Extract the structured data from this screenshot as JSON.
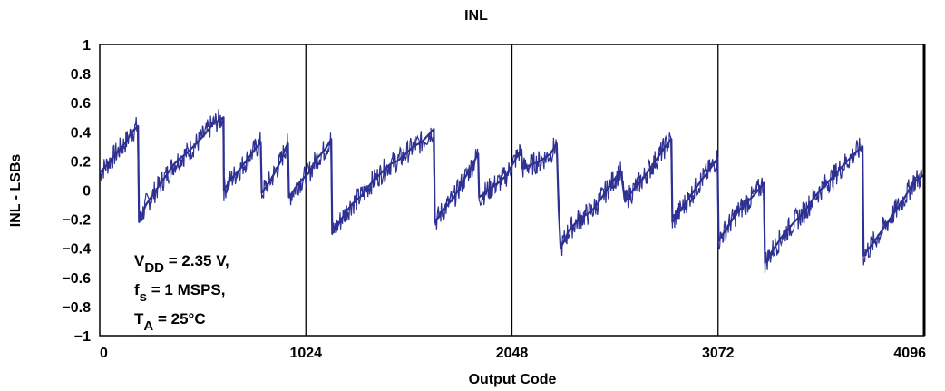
{
  "chart_data": {
    "type": "line",
    "title": "INL",
    "xlabel": "Output Code",
    "ylabel": "INL - LSBs",
    "xlim": [
      0,
      4096
    ],
    "ylim": [
      -1,
      1
    ],
    "x_ticks": [
      "0",
      "1024",
      "2048",
      "3072",
      "4096"
    ],
    "y_ticks": [
      "1",
      "0.8",
      "0.6",
      "0.4",
      "0.2",
      "0",
      "−0.2",
      "−0.4",
      "−0.6",
      "−0.8",
      "−1"
    ],
    "grid": "vertical lines at 1024, 2048, 3072",
    "line_color": "#2e3192",
    "annotations": [
      {
        "main": "V",
        "sub": "DD",
        "rest": " = 2.35 V,"
      },
      {
        "main": "f",
        "sub": "s",
        "rest": " = 1 MSPS,"
      },
      {
        "main": "T",
        "sub": "A",
        "rest": " = 25°C"
      }
    ],
    "series": [
      {
        "values": [
          [
            0,
            0.12
          ],
          [
            40,
            0.18
          ],
          [
            80,
            0.25
          ],
          [
            130,
            0.33
          ],
          [
            160,
            0.4
          ],
          [
            190,
            0.44
          ],
          [
            195,
            -0.22
          ],
          [
            230,
            -0.1
          ],
          [
            280,
            0.0
          ],
          [
            330,
            0.1
          ],
          [
            370,
            0.18
          ],
          [
            400,
            0.22
          ],
          [
            430,
            0.25
          ],
          [
            480,
            0.32
          ],
          [
            520,
            0.38
          ],
          [
            560,
            0.45
          ],
          [
            615,
            0.5
          ],
          [
            617,
            0.0
          ],
          [
            650,
            0.07
          ],
          [
            700,
            0.15
          ],
          [
            760,
            0.26
          ],
          [
            800,
            0.33
          ],
          [
            805,
            -0.02
          ],
          [
            850,
            0.07
          ],
          [
            900,
            0.2
          ],
          [
            920,
            0.28
          ],
          [
            935,
            0.32
          ],
          [
            940,
            -0.05
          ],
          [
            990,
            0.05
          ],
          [
            1040,
            0.12
          ],
          [
            1080,
            0.22
          ],
          [
            1120,
            0.28
          ],
          [
            1150,
            0.35
          ],
          [
            1155,
            -0.3
          ],
          [
            1200,
            -0.2
          ],
          [
            1250,
            -0.1
          ],
          [
            1300,
            -0.04
          ],
          [
            1350,
            0.05
          ],
          [
            1400,
            0.12
          ],
          [
            1445,
            0.18
          ],
          [
            1480,
            0.2
          ],
          [
            1520,
            0.25
          ],
          [
            1560,
            0.3
          ],
          [
            1600,
            0.33
          ],
          [
            1660,
            0.42
          ],
          [
            1665,
            -0.22
          ],
          [
            1700,
            -0.15
          ],
          [
            1760,
            -0.05
          ],
          [
            1800,
            0.05
          ],
          [
            1850,
            0.17
          ],
          [
            1880,
            0.25
          ],
          [
            1885,
            -0.05
          ],
          [
            1930,
            0.0
          ],
          [
            1980,
            0.05
          ],
          [
            2020,
            0.1
          ],
          [
            2060,
            0.2
          ],
          [
            2095,
            0.28
          ],
          [
            2100,
            0.15
          ],
          [
            2190,
            0.2
          ],
          [
            2240,
            0.25
          ],
          [
            2270,
            0.32
          ],
          [
            2280,
            -0.13
          ],
          [
            2290,
            -0.4
          ],
          [
            2330,
            -0.28
          ],
          [
            2380,
            -0.2
          ],
          [
            2440,
            -0.15
          ],
          [
            2470,
            -0.1
          ],
          [
            2520,
            0.0
          ],
          [
            2570,
            0.1
          ],
          [
            2590,
            0.12
          ],
          [
            2610,
            -0.08
          ],
          [
            2650,
            0.0
          ],
          [
            2700,
            0.08
          ],
          [
            2750,
            0.18
          ],
          [
            2800,
            0.28
          ],
          [
            2840,
            0.35
          ],
          [
            2845,
            -0.22
          ],
          [
            2880,
            -0.15
          ],
          [
            2930,
            -0.05
          ],
          [
            2980,
            0.05
          ],
          [
            3030,
            0.14
          ],
          [
            3070,
            0.22
          ],
          [
            3075,
            -0.35
          ],
          [
            3120,
            -0.25
          ],
          [
            3170,
            -0.15
          ],
          [
            3220,
            -0.08
          ],
          [
            3260,
            -0.02
          ],
          [
            3300,
            0.05
          ],
          [
            3305,
            -0.5
          ],
          [
            3350,
            -0.4
          ],
          [
            3400,
            -0.3
          ],
          [
            3450,
            -0.22
          ],
          [
            3500,
            -0.15
          ],
          [
            3550,
            -0.05
          ],
          [
            3600,
            0.03
          ],
          [
            3650,
            0.1
          ],
          [
            3700,
            0.18
          ],
          [
            3750,
            0.25
          ],
          [
            3790,
            0.3
          ],
          [
            3795,
            -0.45
          ],
          [
            3850,
            -0.35
          ],
          [
            3900,
            -0.25
          ],
          [
            3950,
            -0.15
          ],
          [
            4000,
            -0.05
          ],
          [
            4040,
            0.05
          ],
          [
            4090,
            0.1
          ]
        ]
      }
    ]
  }
}
